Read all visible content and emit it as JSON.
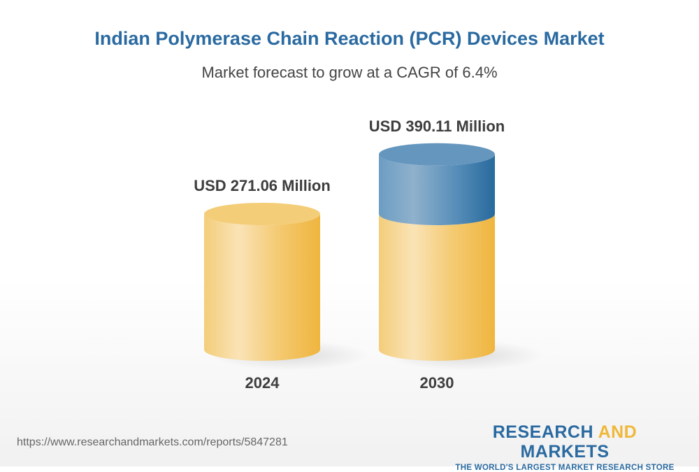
{
  "header": {
    "title": "Indian Polymerase Chain Reaction (PCR) Devices Market",
    "subtitle": "Market forecast to grow at a CAGR of 6.4%"
  },
  "chart_data": {
    "type": "bar",
    "style": "3d-cylinder",
    "categories": [
      "2024",
      "2030"
    ],
    "values": [
      271.06,
      390.11
    ],
    "data_labels": [
      "USD 271.06 Million",
      "USD 390.11 Million"
    ],
    "unit": "USD Million",
    "cagr": "6.4%",
    "grid": false,
    "colors": {
      "base": "#f0b83a",
      "growth": "#2a6aa1"
    }
  },
  "footer": {
    "url": "https://www.researchandmarkets.com/reports/5847281",
    "logo_part1": "RESEARCH ",
    "logo_part2": "AND",
    "logo_part3": " MARKETS",
    "logo_tagline": "THE WORLD'S LARGEST MARKET RESEARCH STORE"
  }
}
